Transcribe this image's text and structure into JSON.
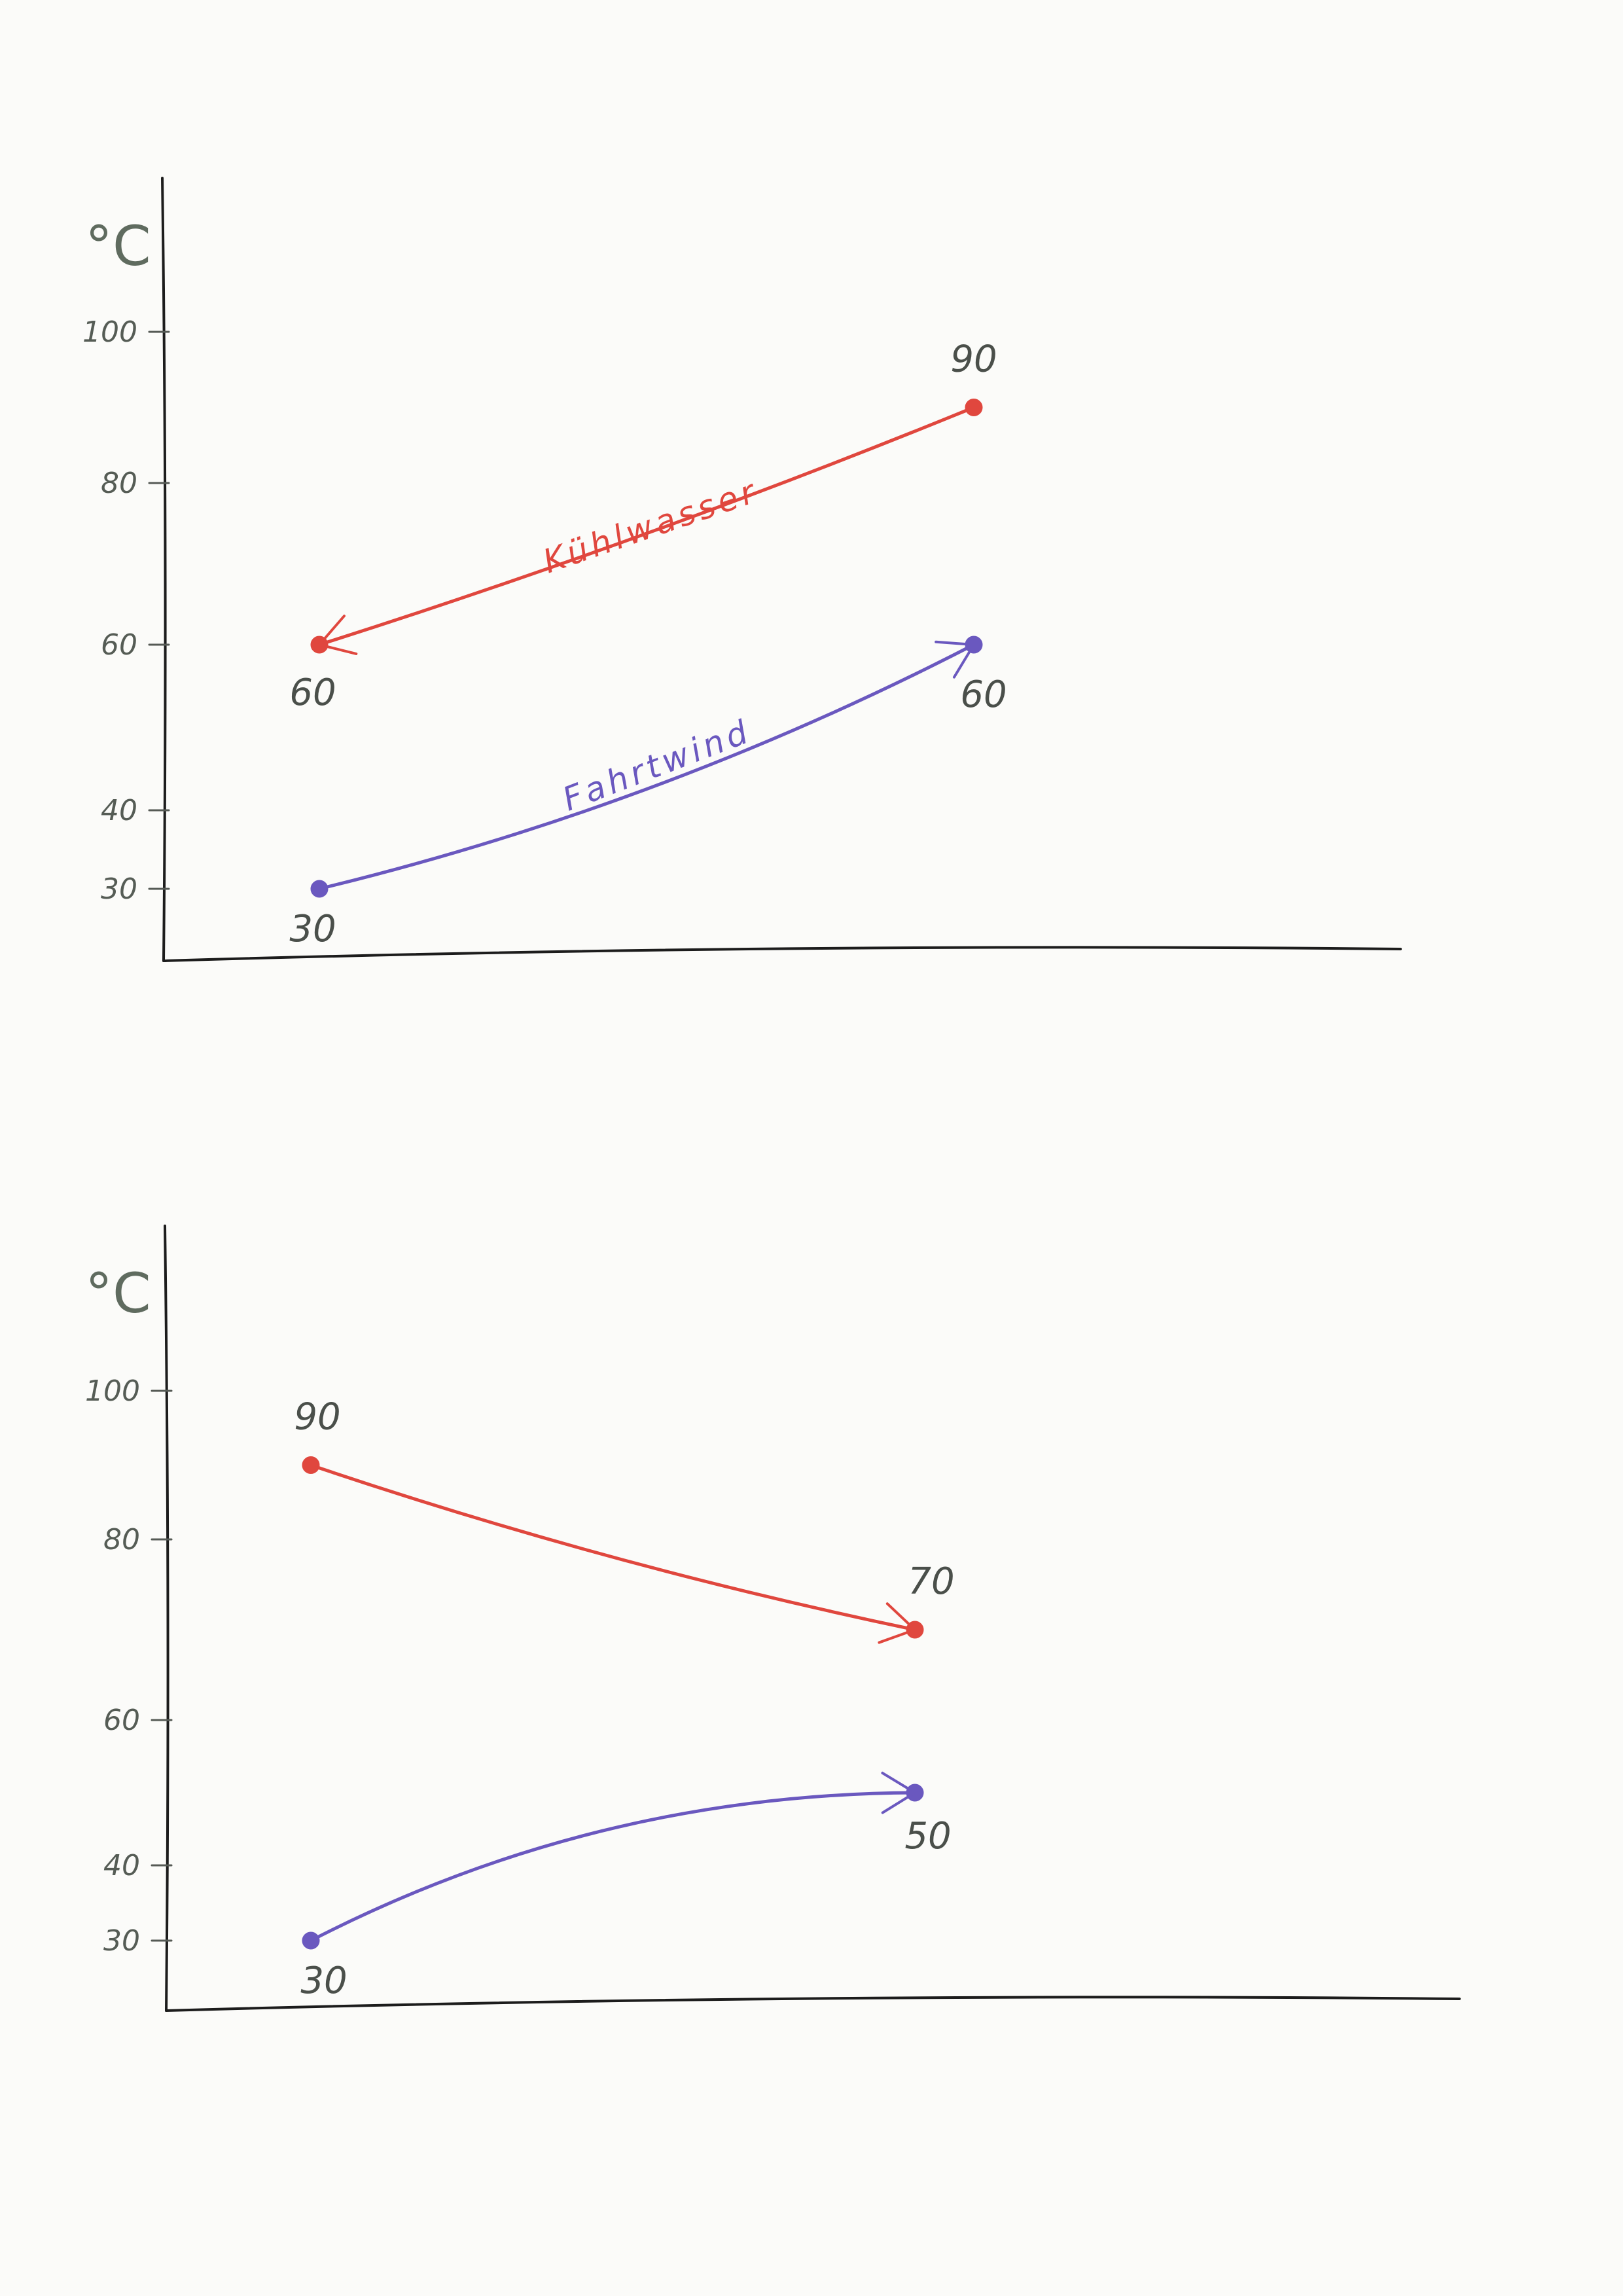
{
  "chart_data": [
    {
      "type": "line",
      "ylabel": "°C",
      "yticks": [
        30,
        40,
        60,
        80,
        100
      ],
      "colors": {
        "red": "#e0473e",
        "purple": "#6a58bf"
      },
      "series": [
        {
          "name": "Kühlwasser",
          "color": "red",
          "arrow": "to-start",
          "points": [
            {
              "x": 0,
              "y": 60,
              "label": "60"
            },
            {
              "x": 1,
              "y": 90,
              "label": "90"
            }
          ]
        },
        {
          "name": "Fahrtwind",
          "color": "purple",
          "arrow": "to-end",
          "points": [
            {
              "x": 0,
              "y": 30,
              "label": "30"
            },
            {
              "x": 1,
              "y": 60,
              "label": "60"
            }
          ]
        }
      ]
    },
    {
      "type": "line",
      "ylabel": "°C",
      "yticks": [
        30,
        40,
        60,
        80,
        100
      ],
      "colors": {
        "red": "#e0473e",
        "purple": "#6a58bf"
      },
      "series": [
        {
          "name": "",
          "color": "red",
          "arrow": "to-end",
          "points": [
            {
              "x": 0,
              "y": 90,
              "label": "90"
            },
            {
              "x": 1,
              "y": 70,
              "label": "70"
            }
          ]
        },
        {
          "name": "",
          "color": "purple",
          "arrow": "to-end",
          "points": [
            {
              "x": 0,
              "y": 30,
              "label": "30"
            },
            {
              "x": 1,
              "y": 50,
              "label": "50"
            }
          ]
        }
      ]
    }
  ]
}
